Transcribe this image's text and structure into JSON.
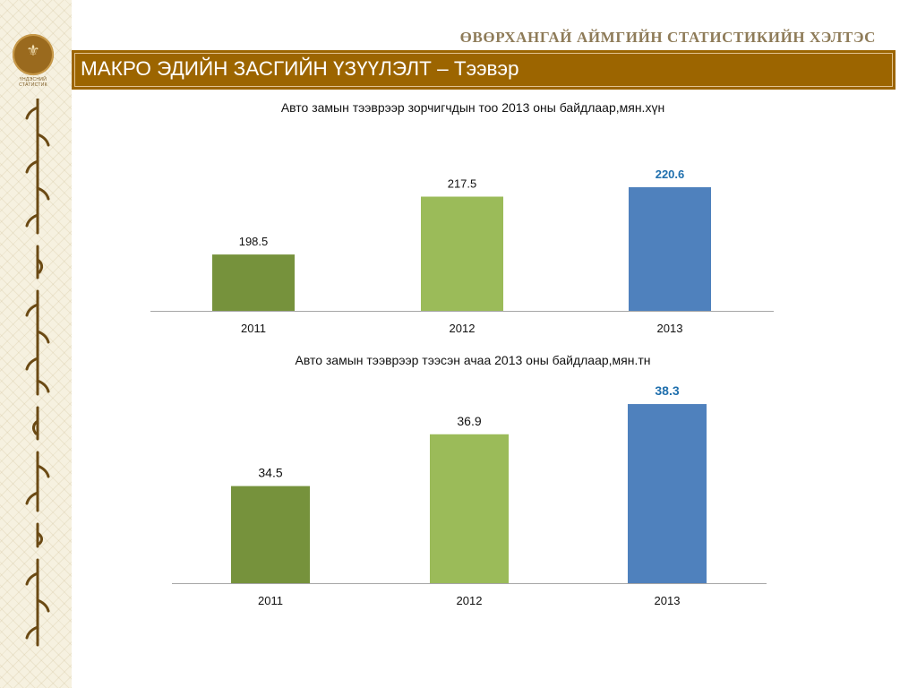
{
  "header": {
    "agency": "ӨВӨРХАНГАЙ АЙМГИЙН СТАТИСТИКИЙН ХЭЛТЭС",
    "title": "МАКРО ЭДИЙН ЗАСГИЙН ҮЗҮҮЛЭЛТ – Тээвэр",
    "emblem_text": "ҮНДЭСНИЙ СТАТИСТИК"
  },
  "colors": {
    "brand": "#9c6500",
    "bar_2011": "#76923c",
    "bar_2012": "#9bbb59",
    "bar_2013": "#4f81bd",
    "highlight_label": "#1f6fad"
  },
  "chart_data": [
    {
      "type": "bar",
      "title": "Авто замын тээврээр зорчигчдын тоо 2013 оны байдлаар,мян.хүн",
      "categories": [
        "2011",
        "2012",
        "2013"
      ],
      "values": [
        198.5,
        217.5,
        220.6
      ],
      "data_labels": [
        "198.5",
        "217.5",
        "220.6"
      ],
      "highlight_index": 2,
      "ylim": [
        180,
        225
      ],
      "grid": false,
      "legend": "none"
    },
    {
      "type": "bar",
      "title": "Авто замын тээврээр тээсэн ачаа  2013 оны байдлаар,мян.тн",
      "categories": [
        "2011",
        "2012",
        "2013"
      ],
      "values": [
        34.5,
        36.9,
        38.3
      ],
      "data_labels": [
        "34.5",
        "36.9",
        "38.3"
      ],
      "highlight_index": 2,
      "ylim": [
        30,
        38.8
      ],
      "grid": false,
      "legend": "none"
    }
  ]
}
